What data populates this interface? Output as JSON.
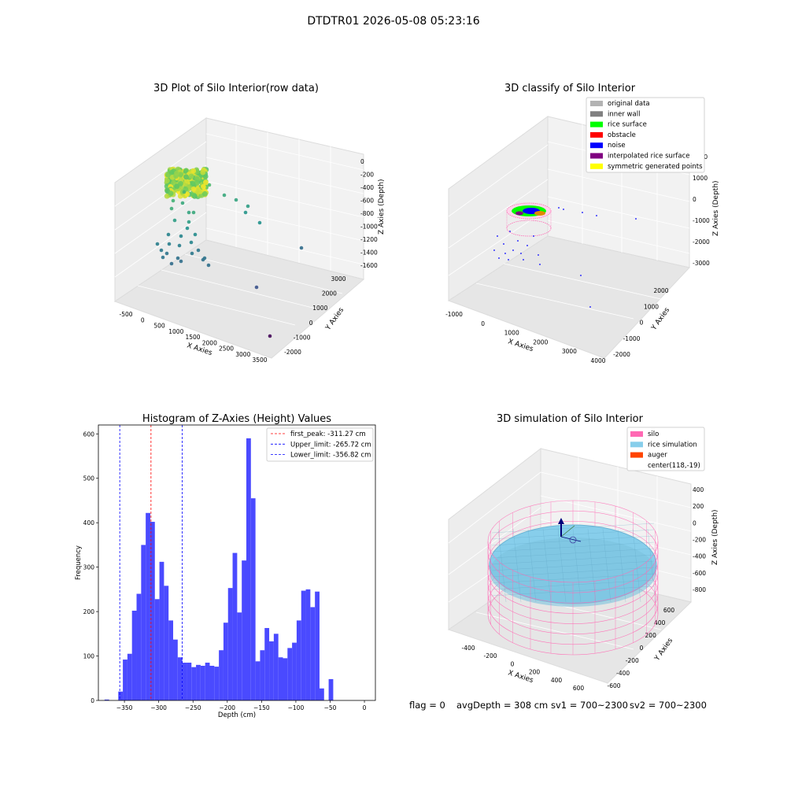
{
  "figure": {
    "suptitle": "DTDTR01 2026-05-08 05:23:16",
    "status": {
      "flag": "flag = 0",
      "avg_depth": "avgDepth = 308 cm",
      "sv1": "sv1 = 700~2300",
      "sv2": "sv2 = 700~2300"
    }
  },
  "colors": {
    "hist_bar": "#4a4aff",
    "peak_line": "#ff0000",
    "limit_line": "#0000ff",
    "silo": "#ff69b4",
    "rice_sim": "#87ceeb",
    "auger": "#ff4500",
    "rice_surface": "#00ff00",
    "obstacle": "#ff0000",
    "noise": "#0000ff",
    "interp_surface": "#800080",
    "symmetric": "#ffff00",
    "original": "#b3b3b3",
    "inner_wall": "#808080"
  },
  "chart_data": [
    {
      "type": "scatter",
      "title": "3D Plot of Silo Interior(row data)",
      "xlabel": "X Axies",
      "ylabel": "Y Axies",
      "zlabel": "Z Axies (Depth)",
      "x_ticks": [
        "-500",
        "0",
        "500",
        "1000",
        "1500",
        "2000",
        "2500",
        "3000",
        "3500"
      ],
      "y_ticks": [
        "-2000",
        "-1000",
        "0",
        "1000",
        "2000",
        "3000"
      ],
      "z_ticks": [
        "0",
        "-200",
        "-400",
        "-600",
        "-800",
        "-1000",
        "-1200",
        "-1400",
        "-1600"
      ],
      "colormap": "viridis by depth"
    },
    {
      "type": "scatter",
      "title": "3D classify of Silo Interior",
      "xlabel": "X Axies",
      "ylabel": "Y Axies",
      "zlabel": "Z Axies (Depth)",
      "x_ticks": [
        "-1000",
        "0",
        "1000",
        "2000",
        "3000",
        "4000"
      ],
      "y_ticks": [
        "-2000",
        "-1000",
        "0",
        "1000",
        "2000"
      ],
      "z_ticks": [
        "2000",
        "1000",
        "0",
        "-1000",
        "-2000",
        "-3000"
      ],
      "legend_position": "top-right",
      "legend": [
        {
          "label": "original data",
          "color": "#b3b3b3"
        },
        {
          "label": "inner wall",
          "color": "#808080"
        },
        {
          "label": "rice surface",
          "color": "#00ff00"
        },
        {
          "label": "obstacle",
          "color": "#ff0000"
        },
        {
          "label": "noise",
          "color": "#0000ff"
        },
        {
          "label": "interpolated rice surface",
          "color": "#800080"
        },
        {
          "label": "symmetric generated points",
          "color": "#ffff00"
        }
      ]
    },
    {
      "type": "bar",
      "title": "Histogram of Z-Axies (Height) Values",
      "xlabel": "Depth (cm)",
      "ylabel": "Frequency",
      "xlim": [
        -388,
        16
      ],
      "ylim": [
        0,
        620
      ],
      "x_ticks": [
        -350,
        -300,
        -250,
        -200,
        -150,
        -100,
        -50,
        0
      ],
      "y_ticks": [
        0,
        100,
        200,
        300,
        400,
        500,
        600
      ],
      "bins": {
        "start": -379,
        "width": 6.67
      },
      "values": [
        2,
        0,
        0,
        20,
        92,
        105,
        202,
        240,
        350,
        422,
        402,
        228,
        312,
        258,
        180,
        137,
        97,
        85,
        85,
        75,
        80,
        78,
        85,
        78,
        76,
        113,
        175,
        253,
        332,
        198,
        315,
        590,
        455,
        88,
        113,
        163,
        133,
        150,
        97,
        95,
        118,
        130,
        180,
        247,
        250,
        210,
        245,
        27,
        0,
        48
      ],
      "vlines": [
        {
          "x": -311.27,
          "label": "first_peak: -311.27 cm",
          "color": "#ff0000"
        },
        {
          "x": -265.72,
          "label": "Upper_limit: -265.72 cm",
          "color": "#0000ff"
        },
        {
          "x": -356.82,
          "label": "Lower_limit: -356.82 cm",
          "color": "#0000ff"
        }
      ],
      "legend_position": "top-right"
    },
    {
      "type": "scatter",
      "title": "3D simulation of Silo Interior",
      "xlabel": "X Axies",
      "ylabel": "Y Axies",
      "zlabel": "Z Axies (Depth)",
      "x_ticks": [
        "-400",
        "-200",
        "0",
        "200",
        "400",
        "600"
      ],
      "y_ticks": [
        "-600",
        "-400",
        "-200",
        "0",
        "200",
        "400",
        "600"
      ],
      "z_ticks": [
        "400",
        "200",
        "0",
        "-200",
        "-400",
        "-600",
        "-800"
      ],
      "legend_position": "top-right",
      "legend": [
        {
          "label": "silo",
          "color": "#ff69b4"
        },
        {
          "label": "rice simulation",
          "color": "#87ceeb"
        },
        {
          "label": "auger",
          "color": "#ff4500"
        },
        {
          "label": "center(118,-19)",
          "color": ""
        }
      ]
    }
  ]
}
